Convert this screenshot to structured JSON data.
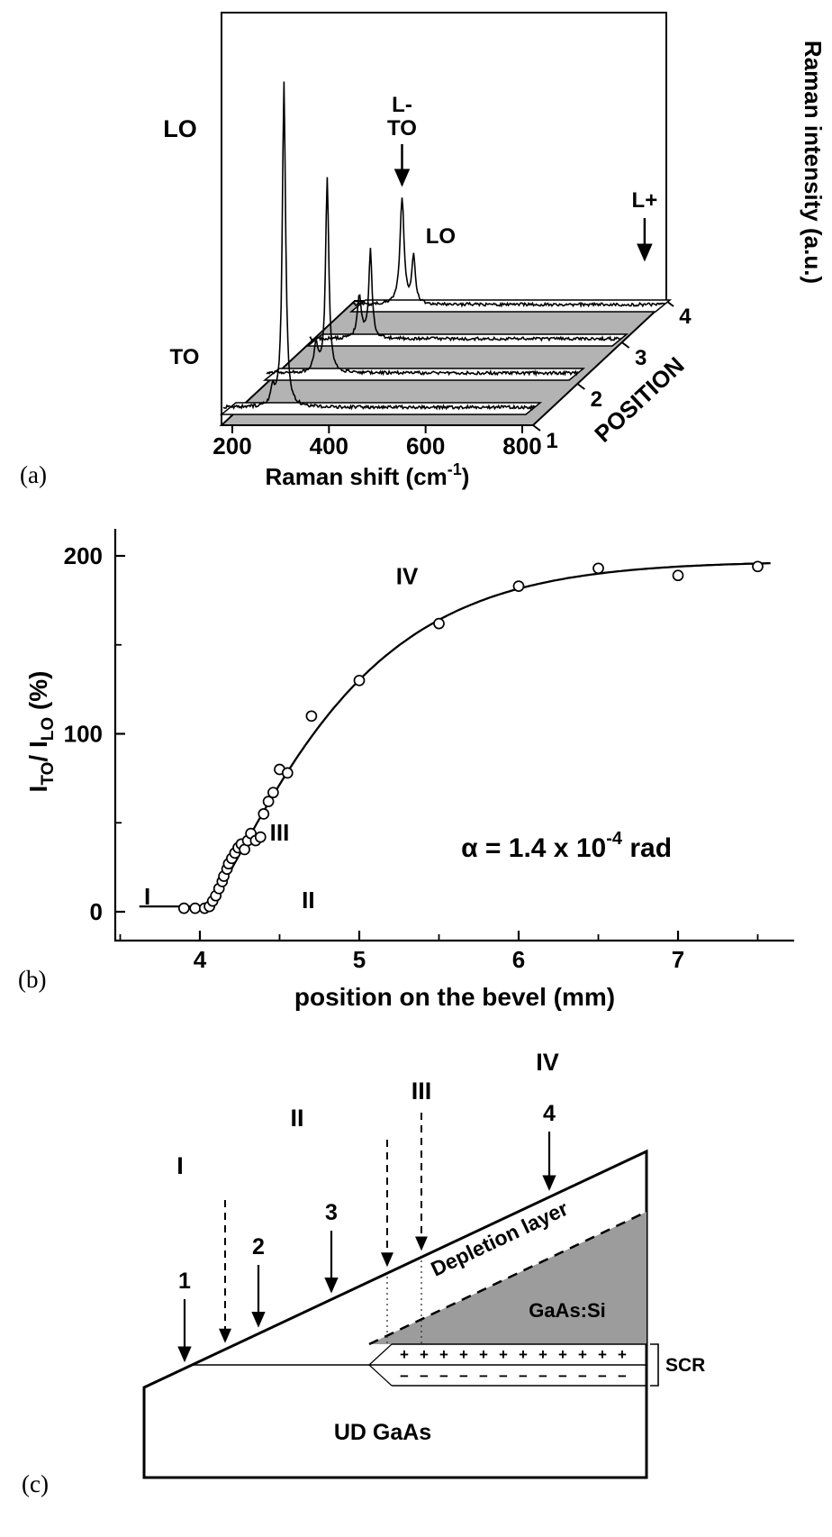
{
  "panels": {
    "a": "(a)",
    "b": "(b)",
    "c": "(c)"
  },
  "colors": {
    "floor_gray": "#b3b3b3",
    "layer_gray": "#9c9c9c"
  },
  "chart_data": [
    {
      "id": "raman_waterfall",
      "type": "line",
      "xlabel": "Raman shift (cm⁻¹)",
      "xlabel_parts": {
        "pre": "Raman shift  (cm",
        "sup": "-1",
        "close": ")"
      },
      "ylabel": "Raman intensity  (a.u.)",
      "depth_label": "POSITION",
      "xlim": [
        200,
        800
      ],
      "xticks": [
        200,
        400,
        600,
        800
      ],
      "depth_ticks": [
        "1",
        "2",
        "3",
        "4"
      ],
      "series": [
        {
          "name": "position 1",
          "peaks": [
            {
              "mode": "TO",
              "center": 269,
              "width": 5,
              "rel_intensity": 0.05
            },
            {
              "mode": "LO",
              "center": 292,
              "width": 4,
              "rel_intensity": 1.0
            }
          ]
        },
        {
          "name": "position 2",
          "peaks": [
            {
              "mode": "TO",
              "center": 269,
              "width": 5,
              "rel_intensity": 0.085
            },
            {
              "mode": "LO",
              "center": 292,
              "width": 4,
              "rel_intensity": 0.6
            }
          ]
        },
        {
          "name": "position 3",
          "peaks": [
            {
              "mode": "TO",
              "center": 269,
              "width": 5,
              "rel_intensity": 0.13
            },
            {
              "mode": "LO",
              "center": 292,
              "width": 4,
              "rel_intensity": 0.27
            }
          ]
        },
        {
          "name": "position 4",
          "peaks": [
            {
              "mode": "L-/TO",
              "center": 268,
              "width": 5,
              "rel_intensity": 0.33
            },
            {
              "mode": "LO",
              "center": 292,
              "width": 4,
              "rel_intensity": 0.15
            }
          ]
        }
      ],
      "annotations": [
        {
          "text": "LO"
        },
        {
          "text": "TO"
        },
        {
          "lines": [
            "L-",
            "TO"
          ],
          "arrow": true
        },
        {
          "text": "LO"
        },
        {
          "text": "L+",
          "arrow": true
        }
      ]
    },
    {
      "id": "ratio_vs_position",
      "type": "scatter+line",
      "xlabel": "position on the bevel (mm)",
      "ylabel": "I_TO/ I_LO (%)",
      "ylabel_parts": {
        "i1": "I",
        "s1": "TO",
        "mid": "/ I",
        "s2": "LO",
        "end": " (%)"
      },
      "xlim": [
        3.5,
        7.7
      ],
      "ylim": [
        -20,
        215
      ],
      "xticks": [
        4,
        5,
        6,
        7
      ],
      "yticks": [
        0,
        100,
        200
      ],
      "points": [
        [
          3.9,
          2
        ],
        [
          3.97,
          2
        ],
        [
          4.03,
          2
        ],
        [
          4.06,
          3
        ],
        [
          4.08,
          6
        ],
        [
          4.1,
          9
        ],
        [
          4.12,
          13
        ],
        [
          4.14,
          17
        ],
        [
          4.15,
          20
        ],
        [
          4.17,
          24
        ],
        [
          4.18,
          27
        ],
        [
          4.2,
          30
        ],
        [
          4.22,
          33
        ],
        [
          4.24,
          36
        ],
        [
          4.26,
          38
        ],
        [
          4.28,
          35
        ],
        [
          4.3,
          40
        ],
        [
          4.32,
          44
        ],
        [
          4.35,
          40
        ],
        [
          4.38,
          42
        ],
        [
          4.4,
          55
        ],
        [
          4.43,
          62
        ],
        [
          4.46,
          67
        ],
        [
          4.5,
          80
        ],
        [
          4.55,
          78
        ],
        [
          4.7,
          110
        ],
        [
          5.0,
          130
        ],
        [
          5.5,
          162
        ],
        [
          6.0,
          183
        ],
        [
          6.5,
          193
        ],
        [
          7.0,
          189
        ],
        [
          7.5,
          194
        ]
      ],
      "fit_curve": {
        "baseline": 3,
        "amplitude": 194,
        "x_onset": 4.05,
        "tau": 0.9,
        "exponent": 1.2
      },
      "region_labels": [
        {
          "text": "I",
          "x": 3.67,
          "y": 4
        },
        {
          "text": "II",
          "x": 4.68,
          "y": 2
        },
        {
          "text": "III",
          "x": 4.5,
          "y": 40
        },
        {
          "text": "IV",
          "x": 5.3,
          "y": 184
        }
      ],
      "annotation": {
        "prefix": "α = 1.4 x 10",
        "superscript": "-4",
        "suffix": " rad",
        "x": 6.3,
        "y": 31
      }
    }
  ],
  "diagram": {
    "labels": {
      "depletion": "Depletion layer",
      "layer": "GaAs:Si",
      "scr": "SCR",
      "substrate": "UD GaAs"
    },
    "region_markers": [
      "I",
      "II",
      "III",
      "IV"
    ],
    "position_markers": [
      "1",
      "2",
      "3",
      "4"
    ],
    "plus_symbol": "+",
    "minus_symbol": "−"
  }
}
